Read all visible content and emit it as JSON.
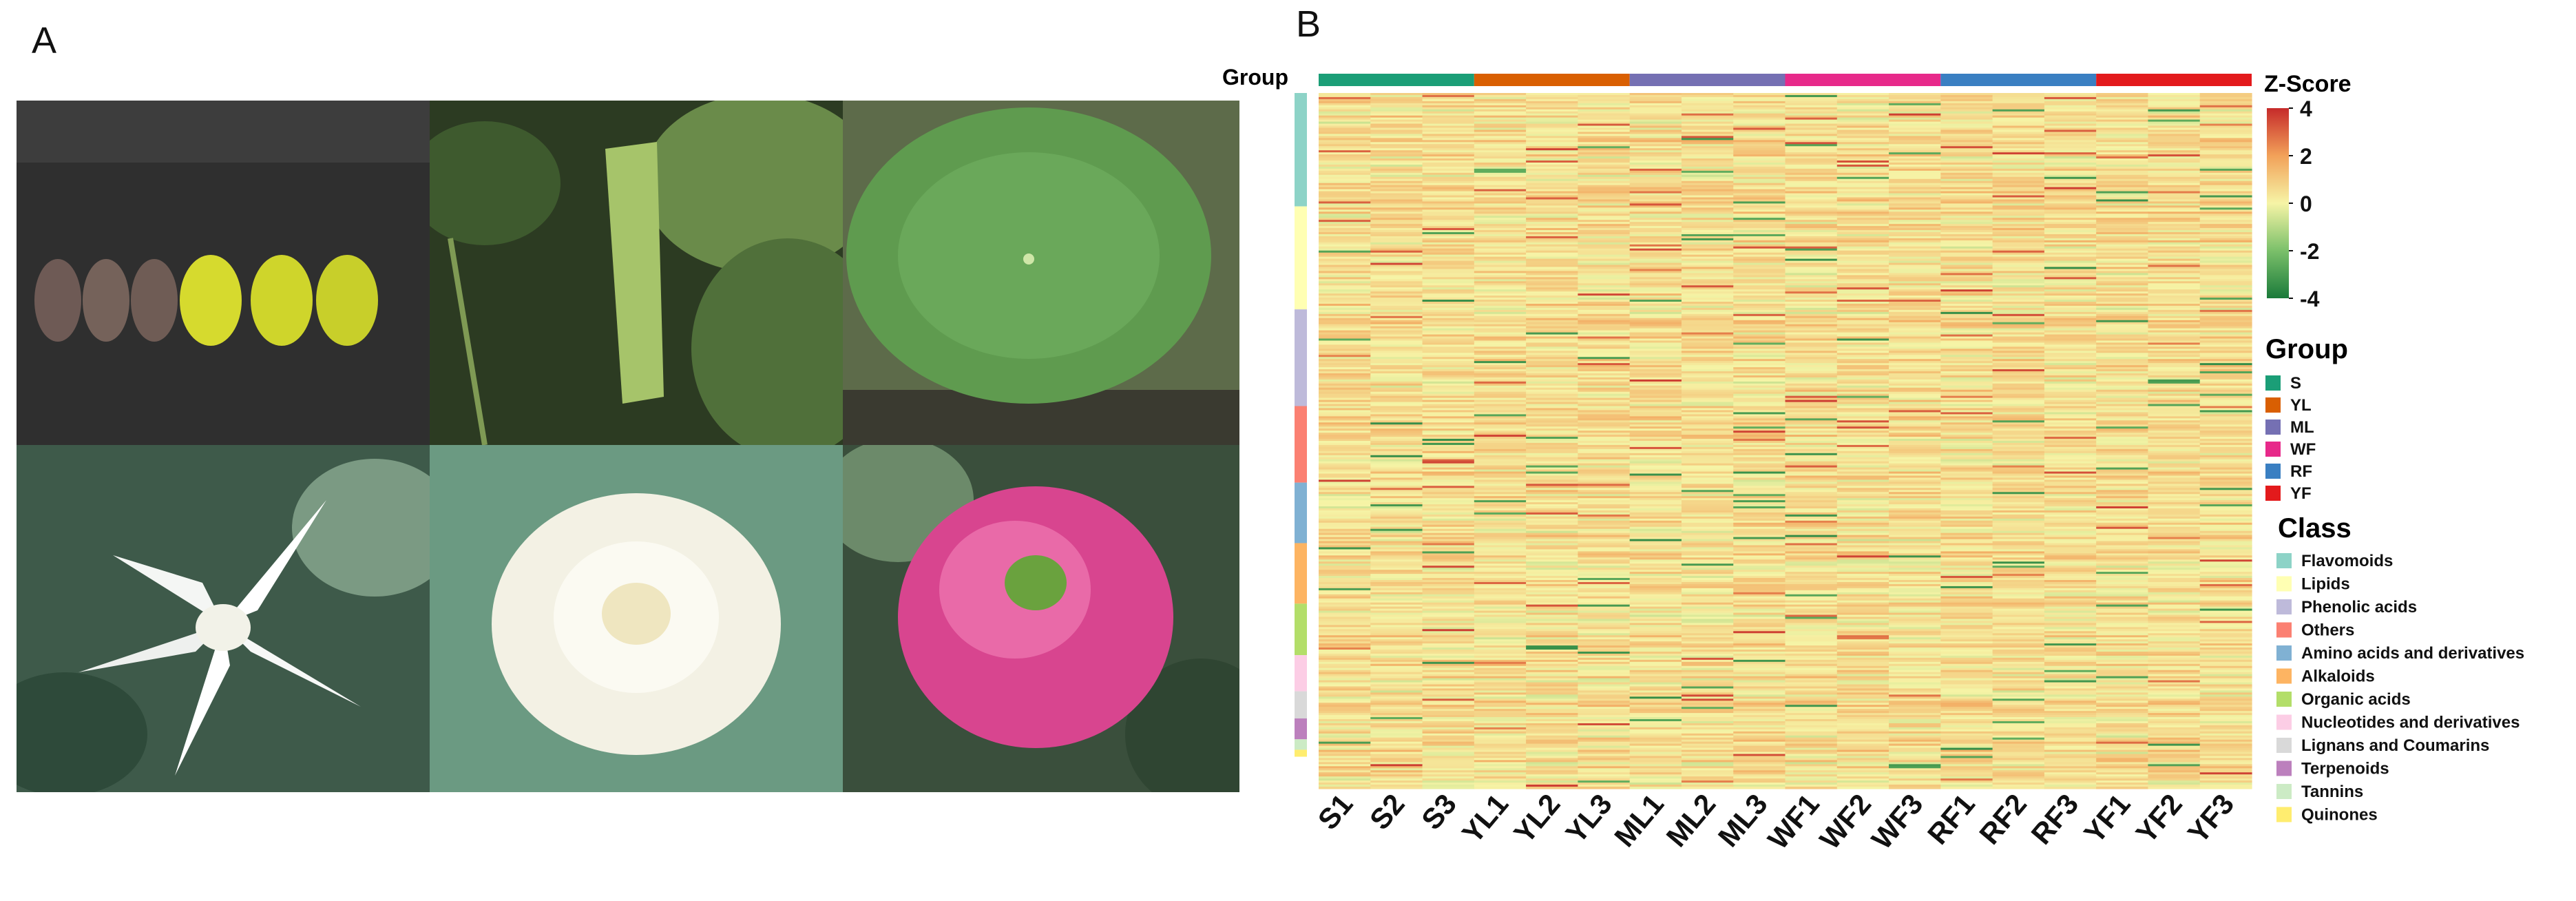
{
  "panels": {
    "a_label": "A",
    "b_label": "B"
  },
  "photos": [
    {
      "name": "seeds-photo"
    },
    {
      "name": "young-leaf-photo"
    },
    {
      "name": "mature-leaf-photo"
    },
    {
      "name": "white-flower-photo"
    },
    {
      "name": "cream-flower-photo"
    },
    {
      "name": "pink-flower-photo"
    }
  ],
  "chart_data": {
    "type": "heatmap",
    "group_label": "Group",
    "samples": [
      "S1",
      "S2",
      "S3",
      "YL1",
      "YL2",
      "YL3",
      "ML1",
      "ML2",
      "ML3",
      "WF1",
      "WF2",
      "WF3",
      "RF1",
      "RF2",
      "RF3",
      "YF1",
      "YF2",
      "YF3"
    ],
    "colorbar": {
      "title": "Z-Score",
      "ticks": [
        4,
        2,
        0,
        -2,
        -4
      ],
      "range": [
        -4,
        4
      ],
      "colors": [
        "#1a7a3a",
        "#7bc06a",
        "#f6f4a6",
        "#f2a159",
        "#c62a2a"
      ]
    },
    "groups": [
      {
        "name": "S",
        "color": "#1b9e77"
      },
      {
        "name": "YL",
        "color": "#d95f02"
      },
      {
        "name": "ML",
        "color": "#7570b3"
      },
      {
        "name": "WF",
        "color": "#e7298a"
      },
      {
        "name": "RF",
        "color": "#3a7fc2"
      },
      {
        "name": "YF",
        "color": "#e31a1c"
      }
    ],
    "group_legend_title": "Group",
    "class_legend_title": "Class",
    "classes": [
      {
        "name": "Flavomoids",
        "color": "#8dd3c7"
      },
      {
        "name": "Lipids",
        "color": "#ffffb3"
      },
      {
        "name": "Phenolic acids",
        "color": "#bebada"
      },
      {
        "name": "Others",
        "color": "#fb8072"
      },
      {
        "name": "Amino acids and derivatives",
        "color": "#80b1d3"
      },
      {
        "name": "Alkaloids",
        "color": "#fdb462"
      },
      {
        "name": "Organic acids",
        "color": "#b3de69"
      },
      {
        "name": "Nucleotides and derivatives",
        "color": "#fccde5"
      },
      {
        "name": "Lignans and Coumarins",
        "color": "#d9d9d9"
      },
      {
        "name": "Terpenoids",
        "color": "#bc80bd"
      },
      {
        "name": "Tannins",
        "color": "#ccebc5"
      },
      {
        "name": "Quinones",
        "color": "#ffed6f"
      }
    ],
    "class_fractions": [
      0.163,
      0.148,
      0.139,
      0.11,
      0.087,
      0.087,
      0.074,
      0.052,
      0.039,
      0.03,
      0.015,
      0.01
    ]
  }
}
